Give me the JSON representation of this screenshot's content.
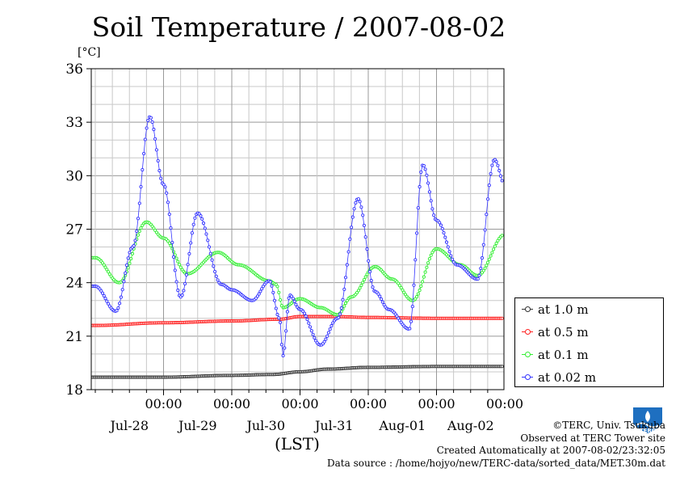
{
  "chart_data": {
    "type": "line",
    "title": "Soil Temperature / 2007-08-02",
    "ylabel": "[°C]",
    "xlabel": "(LST)",
    "ylim": [
      18,
      36
    ],
    "yticks": [
      18,
      21,
      24,
      27,
      30,
      33,
      36
    ],
    "xlim_days": [
      0,
      6
    ],
    "xticks": [
      {
        "day": 1,
        "time": "00:00",
        "date": "Jul-28"
      },
      {
        "day": 2,
        "time": "00:00",
        "date": "Jul-29"
      },
      {
        "day": 3,
        "time": "00:00",
        "date": "Jul-30"
      },
      {
        "day": 4,
        "time": "00:00",
        "date": "Jul-31"
      },
      {
        "day": 5,
        "time": "00:00",
        "date": "Aug-01"
      },
      {
        "day": 6,
        "time": "00:00",
        "date": "Aug-02"
      }
    ],
    "grid": true,
    "legend_position": "right",
    "series": [
      {
        "name": "at 1.0 m",
        "color": "#333333",
        "x": [
          0,
          1,
          2,
          2.6,
          3.0,
          3.4,
          4.0,
          5.0,
          6.0
        ],
        "y": [
          18.7,
          18.7,
          18.8,
          18.85,
          19.0,
          19.15,
          19.25,
          19.3,
          19.3
        ]
      },
      {
        "name": "at 0.5 m",
        "color": "#ff2020",
        "x": [
          0,
          1,
          2,
          2.7,
          3.0,
          3.5,
          4.0,
          5.0,
          6.0
        ],
        "y": [
          21.6,
          21.75,
          21.85,
          21.95,
          22.1,
          22.1,
          22.05,
          22.0,
          22.0
        ]
      },
      {
        "name": "at 0.1 m",
        "color": "#33ee33",
        "x": [
          0,
          0.35,
          0.75,
          1.0,
          1.35,
          1.8,
          2.1,
          2.55,
          2.65,
          2.75,
          3.0,
          3.3,
          3.55,
          3.75,
          4.1,
          4.35,
          4.65,
          5.0,
          5.35,
          5.6,
          6.0,
          6.3
        ],
        "y": [
          25.4,
          24.0,
          27.4,
          26.5,
          24.5,
          25.7,
          25.0,
          24.1,
          23.9,
          22.6,
          23.1,
          22.6,
          22.2,
          23.2,
          24.9,
          24.2,
          23.0,
          25.9,
          25.0,
          24.4,
          26.7,
          25.8
        ]
      },
      {
        "name": "at 0.02 m",
        "color": "#3333ff",
        "x": [
          0,
          0.3,
          0.55,
          0.8,
          1.0,
          1.25,
          1.5,
          1.85,
          2.0,
          2.3,
          2.55,
          2.7,
          2.75,
          2.85,
          3.0,
          3.3,
          3.55,
          3.85,
          4.1,
          4.3,
          4.6,
          4.8,
          5.0,
          5.3,
          5.6,
          5.85,
          6.0,
          6.3
        ],
        "y": [
          23.8,
          22.4,
          26.0,
          33.3,
          29.5,
          23.2,
          27.9,
          23.9,
          23.6,
          23.0,
          24.1,
          22.0,
          19.9,
          23.3,
          22.5,
          20.5,
          22.0,
          28.7,
          23.5,
          22.5,
          21.4,
          30.6,
          27.5,
          25.0,
          24.2,
          30.9,
          29.5,
          25.6
        ]
      }
    ]
  },
  "credits": {
    "copyright": "©TERC, Univ. Tsukuba",
    "observed": "Observed at TERC Tower site",
    "created": "Created Automatically at 2007-08-02/23:32:05",
    "source": "Data source : /home/hojyo/new/TERC-data/sorted_data/MET.30m.dat"
  },
  "logo": {
    "text": "TERC",
    "color": "#1e6fc0"
  }
}
